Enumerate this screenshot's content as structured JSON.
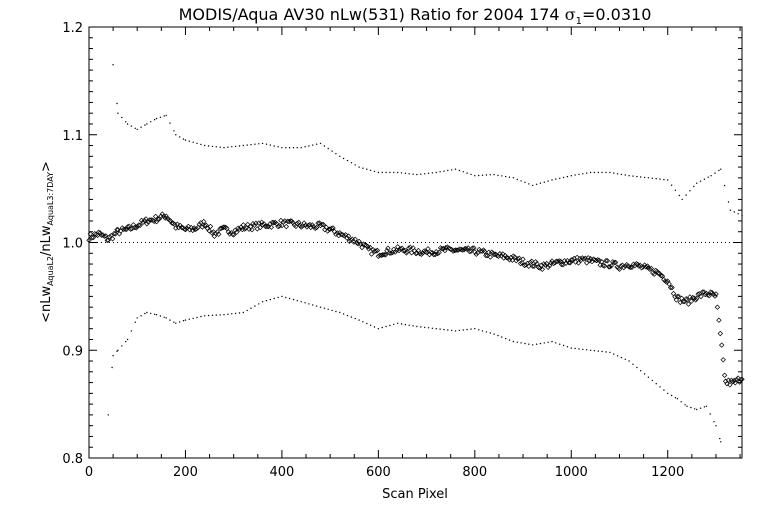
{
  "chart_data": {
    "type": "scatter",
    "title_main": "MODIS/Aqua AV30 nLw(531) Ratio for 2004 174 ",
    "title_sigma_value": "=0.0310",
    "xlabel": "Scan Pixel",
    "ylabel": {
      "open": "<nLw",
      "sub1": "AquaL2",
      "mid": "/nLw",
      "sub2": "AquaL3:7DAY",
      "close": ">"
    },
    "xlim": [
      0,
      1354
    ],
    "ylim": [
      0.8,
      1.2
    ],
    "xticks": [
      0,
      200,
      400,
      600,
      800,
      1000,
      1200
    ],
    "xtick_labels": [
      "0",
      "200",
      "400",
      "600",
      "800",
      "1000",
      "1200"
    ],
    "yticks": [
      0.8,
      0.9,
      1.0,
      1.1,
      1.2
    ],
    "ytick_labels": [
      "0.8",
      "0.9",
      "1.0",
      "1.1",
      "1.2"
    ],
    "reference_line_y": 1.0,
    "series": [
      {
        "style": "diamond markers",
        "points": [
          [
            0,
            1.005
          ],
          [
            20,
            1.008
          ],
          [
            40,
            1.003
          ],
          [
            60,
            1.01
          ],
          [
            80,
            1.012
          ],
          [
            100,
            1.016
          ],
          [
            120,
            1.02
          ],
          [
            140,
            1.022
          ],
          [
            160,
            1.025
          ],
          [
            180,
            1.015
          ],
          [
            200,
            1.012
          ],
          [
            220,
            1.013
          ],
          [
            240,
            1.018
          ],
          [
            260,
            1.008
          ],
          [
            280,
            1.012
          ],
          [
            300,
            1.01
          ],
          [
            320,
            1.014
          ],
          [
            340,
            1.015
          ],
          [
            360,
            1.016
          ],
          [
            380,
            1.017
          ],
          [
            400,
            1.018
          ],
          [
            420,
            1.017
          ],
          [
            440,
            1.016
          ],
          [
            460,
            1.015
          ],
          [
            480,
            1.015
          ],
          [
            500,
            1.012
          ],
          [
            520,
            1.008
          ],
          [
            540,
            1.004
          ],
          [
            560,
            1.0
          ],
          [
            580,
            0.993
          ],
          [
            600,
            0.99
          ],
          [
            620,
            0.992
          ],
          [
            640,
            0.993
          ],
          [
            660,
            0.993
          ],
          [
            680,
            0.992
          ],
          [
            700,
            0.991
          ],
          [
            720,
            0.992
          ],
          [
            740,
            0.993
          ],
          [
            760,
            0.993
          ],
          [
            780,
            0.992
          ],
          [
            800,
            0.992
          ],
          [
            820,
            0.99
          ],
          [
            840,
            0.988
          ],
          [
            860,
            0.987
          ],
          [
            880,
            0.985
          ],
          [
            900,
            0.982
          ],
          [
            920,
            0.98
          ],
          [
            940,
            0.978
          ],
          [
            960,
            0.98
          ],
          [
            980,
            0.982
          ],
          [
            1000,
            0.983
          ],
          [
            1020,
            0.984
          ],
          [
            1040,
            0.983
          ],
          [
            1060,
            0.981
          ],
          [
            1080,
            0.98
          ],
          [
            1100,
            0.978
          ],
          [
            1120,
            0.98
          ],
          [
            1140,
            0.978
          ],
          [
            1160,
            0.975
          ],
          [
            1180,
            0.972
          ],
          [
            1200,
            0.965
          ],
          [
            1220,
            0.948
          ],
          [
            1240,
            0.945
          ],
          [
            1260,
            0.95
          ],
          [
            1280,
            0.953
          ],
          [
            1300,
            0.95
          ],
          [
            1320,
            0.87
          ],
          [
            1340,
            0.87
          ],
          [
            1354,
            0.875
          ]
        ]
      },
      {
        "style": "dotted upper envelope",
        "points": [
          [
            50,
            1.165
          ],
          [
            60,
            1.12
          ],
          [
            80,
            1.11
          ],
          [
            100,
            1.105
          ],
          [
            120,
            1.11
          ],
          [
            140,
            1.115
          ],
          [
            160,
            1.118
          ],
          [
            180,
            1.1
          ],
          [
            200,
            1.095
          ],
          [
            240,
            1.09
          ],
          [
            280,
            1.088
          ],
          [
            320,
            1.09
          ],
          [
            360,
            1.092
          ],
          [
            400,
            1.088
          ],
          [
            440,
            1.088
          ],
          [
            480,
            1.092
          ],
          [
            520,
            1.08
          ],
          [
            560,
            1.07
          ],
          [
            600,
            1.065
          ],
          [
            640,
            1.065
          ],
          [
            680,
            1.063
          ],
          [
            720,
            1.065
          ],
          [
            760,
            1.068
          ],
          [
            800,
            1.062
          ],
          [
            840,
            1.063
          ],
          [
            880,
            1.06
          ],
          [
            920,
            1.053
          ],
          [
            960,
            1.058
          ],
          [
            1000,
            1.062
          ],
          [
            1040,
            1.065
          ],
          [
            1080,
            1.065
          ],
          [
            1120,
            1.062
          ],
          [
            1160,
            1.06
          ],
          [
            1200,
            1.058
          ],
          [
            1230,
            1.04
          ],
          [
            1260,
            1.055
          ],
          [
            1290,
            1.062
          ],
          [
            1310,
            1.068
          ],
          [
            1330,
            1.03
          ],
          [
            1354,
            1.025
          ]
        ]
      },
      {
        "style": "dotted lower envelope",
        "points": [
          [
            40,
            0.84
          ],
          [
            50,
            0.895
          ],
          [
            60,
            0.9
          ],
          [
            80,
            0.91
          ],
          [
            100,
            0.93
          ],
          [
            120,
            0.935
          ],
          [
            140,
            0.933
          ],
          [
            160,
            0.93
          ],
          [
            180,
            0.925
          ],
          [
            200,
            0.928
          ],
          [
            240,
            0.932
          ],
          [
            280,
            0.933
          ],
          [
            320,
            0.935
          ],
          [
            360,
            0.945
          ],
          [
            400,
            0.95
          ],
          [
            440,
            0.945
          ],
          [
            480,
            0.94
          ],
          [
            520,
            0.935
          ],
          [
            560,
            0.928
          ],
          [
            600,
            0.92
          ],
          [
            640,
            0.925
          ],
          [
            680,
            0.922
          ],
          [
            720,
            0.92
          ],
          [
            760,
            0.918
          ],
          [
            800,
            0.92
          ],
          [
            840,
            0.915
          ],
          [
            880,
            0.908
          ],
          [
            920,
            0.905
          ],
          [
            960,
            0.908
          ],
          [
            1000,
            0.902
          ],
          [
            1040,
            0.9
          ],
          [
            1080,
            0.898
          ],
          [
            1120,
            0.89
          ],
          [
            1160,
            0.875
          ],
          [
            1200,
            0.86
          ],
          [
            1220,
            0.855
          ],
          [
            1240,
            0.848
          ],
          [
            1260,
            0.845
          ],
          [
            1280,
            0.848
          ],
          [
            1300,
            0.83
          ],
          [
            1310,
            0.815
          ]
        ]
      }
    ]
  }
}
